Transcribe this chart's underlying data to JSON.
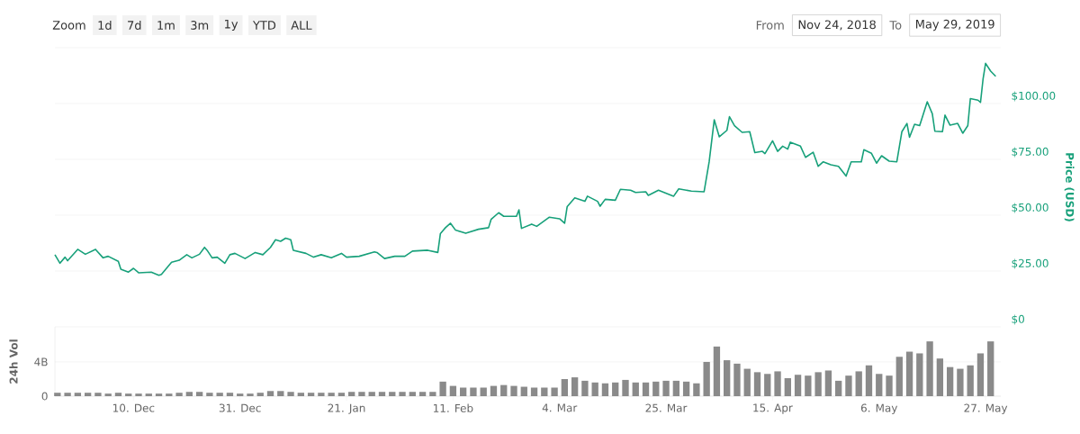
{
  "chart_data": [
    {
      "type": "line",
      "ylabel": "Price (USD)",
      "color": "#17a07a",
      "grid": "y",
      "tick_labels": "y",
      "annotations": [
        "Zoom",
        "1d",
        "7d",
        "1m",
        "3m",
        "1y",
        "YTD",
        "ALL",
        "From",
        "Nov 24, 2018",
        "To",
        "May 29, 2019"
      ],
      "xlim": [
        "2018-11-24T12:00",
        "2019-05-30T00:00"
      ],
      "ylim": [
        0,
        125
      ],
      "yticks": [
        {
          "value": 0,
          "label": "$0"
        },
        {
          "value": 25,
          "label": "$25.00"
        },
        {
          "value": 50,
          "label": "$50.00"
        },
        {
          "value": 75,
          "label": "$75.00"
        },
        {
          "value": 100,
          "label": "$100.00"
        },
        {
          "value": 125,
          "label": null
        }
      ],
      "x": [
        "2018-11-24T12:00",
        "2018-11-25T12:00",
        "2018-11-26T12:00",
        "2018-11-27T00:00",
        "2018-11-29T00:00",
        "2018-11-30T12:00",
        "2018-12-02T12:00",
        "2018-12-04T00:00",
        "2018-12-05T00:00",
        "2018-12-07T00:00",
        "2018-12-07T12:00",
        "2018-12-09T00:00",
        "2018-12-10T00:00",
        "2018-12-11T00:00",
        "2018-12-13T12:00",
        "2018-12-15T00:00",
        "2018-12-15T12:00",
        "2018-12-16T12:00",
        "2018-12-17T12:00",
        "2018-12-19T00:00",
        "2018-12-20T12:00",
        "2018-12-21T12:00",
        "2018-12-23T00:00",
        "2018-12-24T00:00",
        "2018-12-24T12:00",
        "2018-12-25T12:00",
        "2018-12-26T12:00",
        "2018-12-28T00:00",
        "2018-12-29T00:00",
        "2018-12-30T00:00",
        "2019-01-01T00:00",
        "2019-01-03T00:00",
        "2019-01-04T12:00",
        "2019-01-06T00:00",
        "2019-01-07T00:00",
        "2019-01-08T00:00",
        "2019-01-09T00:00",
        "2019-01-10T00:00",
        "2019-01-10T12:00",
        "2019-01-13T00:00",
        "2019-01-14T12:00",
        "2019-01-16T00:00",
        "2019-01-18T00:00",
        "2019-01-20T00:00",
        "2019-01-21T00:00",
        "2019-01-23T12:00",
        "2019-01-26T12:00",
        "2019-01-27T00:00",
        "2019-01-28T12:00",
        "2019-01-30T12:00",
        "2019-02-01T12:00",
        "2019-02-03T00:00",
        "2019-02-06T00:00",
        "2019-02-08T00:00",
        "2019-02-08T12:00",
        "2019-02-09T12:00",
        "2019-02-10T12:00",
        "2019-02-11T12:00",
        "2019-02-13T12:00",
        "2019-02-16T00:00",
        "2019-02-18T00:00",
        "2019-02-18T12:00",
        "2019-02-20T00:00",
        "2019-02-21T00:00",
        "2019-02-23T12:00",
        "2019-02-24T00:00",
        "2019-02-24T12:00",
        "2019-02-26T12:00",
        "2019-02-27T12:00",
        "2019-03-02T00:00",
        "2019-03-04T00:00",
        "2019-03-05T00:00",
        "2019-03-05T12:00",
        "2019-03-07T00:00",
        "2019-03-09T00:00",
        "2019-03-09T12:00",
        "2019-03-11T12:00",
        "2019-03-12T00:00",
        "2019-03-13T00:00",
        "2019-03-15T00:00",
        "2019-03-16T00:00",
        "2019-03-18T00:00",
        "2019-03-19T00:00",
        "2019-03-21T00:00",
        "2019-03-21T12:00",
        "2019-03-23T12:00",
        "2019-03-26T12:00",
        "2019-03-27T12:00",
        "2019-03-30T00:00",
        "2019-04-01T12:00",
        "2019-04-02T12:00",
        "2019-04-03T12:00",
        "2019-04-04T12:00",
        "2019-04-06T00:00",
        "2019-04-06T12:00",
        "2019-04-07T12:00",
        "2019-04-09T00:00",
        "2019-04-10T12:00",
        "2019-04-11T12:00",
        "2019-04-13T00:00",
        "2019-04-13T12:00",
        "2019-04-15T00:00",
        "2019-04-16T00:00",
        "2019-04-17T00:00",
        "2019-04-18T00:00",
        "2019-04-18T12:00",
        "2019-04-20T12:00",
        "2019-04-21T12:00",
        "2019-04-23T00:00",
        "2019-04-24T00:00",
        "2019-04-25T00:00",
        "2019-04-26T12:00",
        "2019-04-28T00:00",
        "2019-04-29T12:00",
        "2019-04-30T12:00",
        "2019-05-02T12:00",
        "2019-05-03T00:00",
        "2019-05-04T12:00",
        "2019-05-05T12:00",
        "2019-05-06T12:00",
        "2019-05-08T00:00",
        "2019-05-09T12:00",
        "2019-05-10T12:00",
        "2019-05-11T12:00",
        "2019-05-12T00:00",
        "2019-05-13T00:00",
        "2019-05-14T00:00",
        "2019-05-15T12:00",
        "2019-05-16T12:00",
        "2019-05-17T00:00",
        "2019-05-18T12:00",
        "2019-05-19T00:00",
        "2019-05-20T00:00",
        "2019-05-21T12:00",
        "2019-05-22T12:00",
        "2019-05-23T12:00",
        "2019-05-24T00:00",
        "2019-05-25T12:00",
        "2019-05-26T00:00",
        "2019-05-26T12:00",
        "2019-05-27T00:00",
        "2019-05-28T00:00",
        "2019-05-29T00:00"
      ],
      "values": [
        32.3,
        28.5,
        31.2,
        29.6,
        34.7,
        32.5,
        34.7,
        30.9,
        31.6,
        29.3,
        25.8,
        24.5,
        26.2,
        24.2,
        24.5,
        23.1,
        23.5,
        26.2,
        28.9,
        29.8,
        32.3,
        30.9,
        32.5,
        35.6,
        34.3,
        30.9,
        31.2,
        28.5,
        32.3,
        32.9,
        30.6,
        33.3,
        32.3,
        35.6,
        39.0,
        38.3,
        39.7,
        39.0,
        34.3,
        32.9,
        31.2,
        32.3,
        30.9,
        32.9,
        31.2,
        31.6,
        33.6,
        33.3,
        30.6,
        31.6,
        31.6,
        33.9,
        34.3,
        33.3,
        41.7,
        44.4,
        46.4,
        43.3,
        41.9,
        43.7,
        44.4,
        48.1,
        51.1,
        49.5,
        49.5,
        52.4,
        44.1,
        46.0,
        45.0,
        49.1,
        48.4,
        46.4,
        53.8,
        57.8,
        56.2,
        58.5,
        56.2,
        54.0,
        57.1,
        56.7,
        61.6,
        61.2,
        60.2,
        60.5,
        58.9,
        61.2,
        58.5,
        61.8,
        60.8,
        60.5,
        73.9,
        92.7,
        85.1,
        88.0,
        94.1,
        90.1,
        87.1,
        87.4,
        78.0,
        78.6,
        77.6,
        83.3,
        78.6,
        80.9,
        79.6,
        82.7,
        80.9,
        75.9,
        78.2,
        71.9,
        73.9,
        72.6,
        71.9,
        67.5,
        73.9,
        73.9,
        79.3,
        77.7,
        73.3,
        76.6,
        74.2,
        73.9,
        87.4,
        91.1,
        84.9,
        90.7,
        90.1,
        100.8,
        95.4,
        87.6,
        87.4,
        94.8,
        90.3,
        91.1,
        86.7,
        90.1,
        102.2,
        101.5,
        100.5,
        110.9,
        118.0,
        114.5,
        112.2
      ]
    },
    {
      "type": "bar",
      "ylabel": "24h Vol",
      "color": "#8a8a8a",
      "grid": "y",
      "xlim": [
        "2018-11-24T12:00",
        "2019-05-30T00:00"
      ],
      "xticks": [
        {
          "value": "2018-12-10",
          "label": "10. Dec"
        },
        {
          "value": "2018-12-31",
          "label": "31. Dec"
        },
        {
          "value": "2019-01-21",
          "label": "21. Jan"
        },
        {
          "value": "2019-02-11",
          "label": "11. Feb"
        },
        {
          "value": "2019-03-04",
          "label": "4. Mar"
        },
        {
          "value": "2019-03-25",
          "label": "25. Mar"
        },
        {
          "value": "2019-04-15",
          "label": "15. Apr"
        },
        {
          "value": "2019-05-06",
          "label": "6. May"
        },
        {
          "value": "2019-05-27",
          "label": "27. May"
        }
      ],
      "ylim": [
        0,
        8.1
      ],
      "yticks": [
        0,
        {
          "value": 4,
          "label": "4B"
        }
      ],
      "x": [
        "2018-11-25",
        "2018-11-27",
        "2018-11-29",
        "2018-12-01",
        "2018-12-03",
        "2018-12-05",
        "2018-12-07",
        "2018-12-09",
        "2018-12-11",
        "2018-12-13",
        "2018-12-15",
        "2018-12-17",
        "2018-12-19",
        "2018-12-21",
        "2018-12-23",
        "2018-12-25",
        "2018-12-27",
        "2018-12-29",
        "2018-12-31",
        "2019-01-02",
        "2019-01-04",
        "2019-01-06",
        "2019-01-08",
        "2019-01-10",
        "2019-01-12",
        "2019-01-14",
        "2019-01-16",
        "2019-01-18",
        "2019-01-20",
        "2019-01-22",
        "2019-01-24",
        "2019-01-26",
        "2019-01-28",
        "2019-01-30",
        "2019-02-01",
        "2019-02-03",
        "2019-02-05",
        "2019-02-07",
        "2019-02-09",
        "2019-02-11",
        "2019-02-13",
        "2019-02-15",
        "2019-02-17",
        "2019-02-19",
        "2019-02-21",
        "2019-02-23",
        "2019-02-25",
        "2019-02-27",
        "2019-03-01",
        "2019-03-03",
        "2019-03-05",
        "2019-03-07",
        "2019-03-09",
        "2019-03-11",
        "2019-03-13",
        "2019-03-15",
        "2019-03-17",
        "2019-03-19",
        "2019-03-21",
        "2019-03-23",
        "2019-03-25",
        "2019-03-27",
        "2019-03-29",
        "2019-03-31",
        "2019-04-02",
        "2019-04-04",
        "2019-04-06",
        "2019-04-08",
        "2019-04-10",
        "2019-04-12",
        "2019-04-14",
        "2019-04-16",
        "2019-04-18",
        "2019-04-20",
        "2019-04-22",
        "2019-04-24",
        "2019-04-26",
        "2019-04-28",
        "2019-04-30",
        "2019-05-02",
        "2019-05-04",
        "2019-05-06",
        "2019-05-08",
        "2019-05-10",
        "2019-05-12",
        "2019-05-14",
        "2019-05-16",
        "2019-05-18",
        "2019-05-20",
        "2019-05-22",
        "2019-05-24",
        "2019-05-26",
        "2019-05-28"
      ],
      "values": [
        0.4,
        0.4,
        0.4,
        0.4,
        0.4,
        0.3,
        0.4,
        0.3,
        0.3,
        0.3,
        0.3,
        0.3,
        0.4,
        0.5,
        0.5,
        0.4,
        0.4,
        0.4,
        0.3,
        0.3,
        0.4,
        0.6,
        0.6,
        0.5,
        0.4,
        0.4,
        0.4,
        0.4,
        0.4,
        0.5,
        0.5,
        0.5,
        0.5,
        0.5,
        0.5,
        0.5,
        0.5,
        0.5,
        1.7,
        1.2,
        1.0,
        1.0,
        1.0,
        1.2,
        1.3,
        1.2,
        1.1,
        1.0,
        1.0,
        1.0,
        2.0,
        2.2,
        1.8,
        1.6,
        1.5,
        1.6,
        1.9,
        1.6,
        1.6,
        1.7,
        1.8,
        1.8,
        1.7,
        1.5,
        4.0,
        5.8,
        4.2,
        3.8,
        3.2,
        2.8,
        2.6,
        2.9,
        2.1,
        2.5,
        2.4,
        2.8,
        3.0,
        1.8,
        2.4,
        2.9,
        3.6,
        2.6,
        2.4,
        4.6,
        5.2,
        5.0,
        6.4,
        4.4,
        3.4,
        3.2,
        3.6,
        5.0,
        6.4
      ]
    }
  ]
}
